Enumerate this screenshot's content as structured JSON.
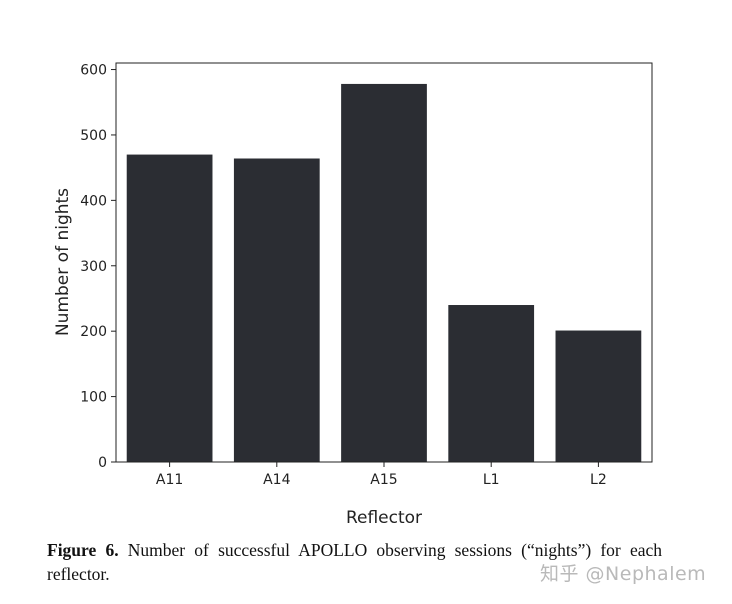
{
  "chart_data": {
    "type": "bar",
    "categories": [
      "A11",
      "A14",
      "A15",
      "L1",
      "L2"
    ],
    "values": [
      470,
      464,
      578,
      240,
      201
    ],
    "title": "",
    "xlabel": "Reflector",
    "ylabel": "Number of nights",
    "ylim": [
      0,
      610
    ],
    "yticks": [
      0,
      100,
      200,
      300,
      400,
      500,
      600
    ],
    "bar_color": "#2b2d33",
    "grid": false,
    "legend": "none"
  },
  "caption": {
    "figure_number": "Figure 6.",
    "text": "Number of successful APOLLO observing sessions (“nights”) for each reflector."
  },
  "watermark": {
    "text": "知乎 @Nephalem"
  }
}
